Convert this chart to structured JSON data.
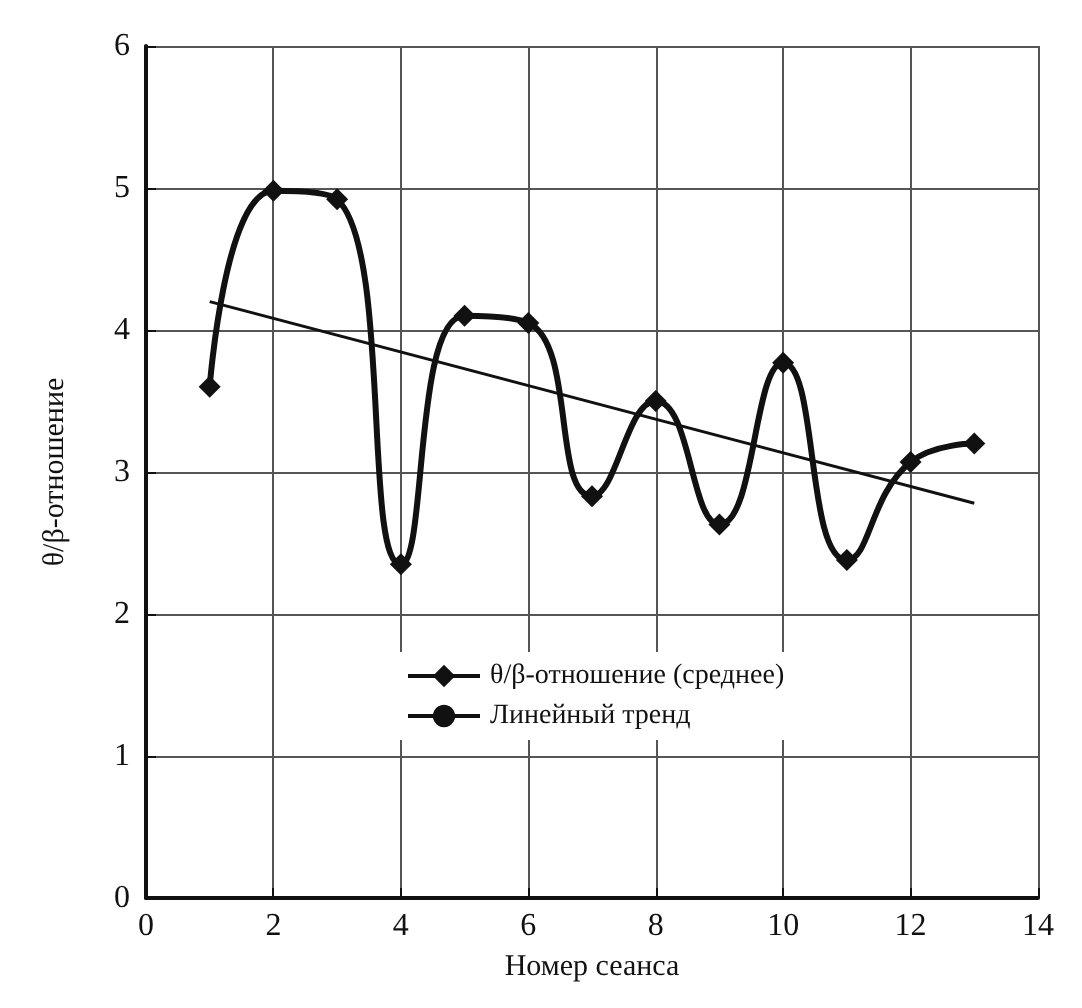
{
  "chart_data": {
    "type": "line",
    "xlabel": "Номер сеанса",
    "ylabel": "θ/β-отношение",
    "x": [
      1,
      2,
      3,
      4,
      5,
      6,
      7,
      8,
      9,
      10,
      11,
      12,
      13
    ],
    "series": [
      {
        "name": "θ/β-отношение (среднее)",
        "color": "#111111",
        "values": [
          3.6,
          4.98,
          4.92,
          2.35,
          4.1,
          4.05,
          2.83,
          3.5,
          2.63,
          3.77,
          2.38,
          3.07,
          3.2
        ],
        "marker": "diamond"
      },
      {
        "name": "Линейный тренд",
        "color": "#111111",
        "type": "line",
        "x": [
          1,
          13
        ],
        "values": [
          4.2,
          2.78
        ],
        "marker": "none"
      }
    ],
    "xlim": [
      0,
      14
    ],
    "xticks": [
      0,
      2,
      4,
      6,
      8,
      10,
      12,
      14
    ],
    "ylim": [
      0,
      6
    ],
    "yticks": [
      0,
      1,
      2,
      3,
      4,
      5,
      6
    ],
    "grid": true,
    "legend": "center",
    "line_style": "solid"
  }
}
